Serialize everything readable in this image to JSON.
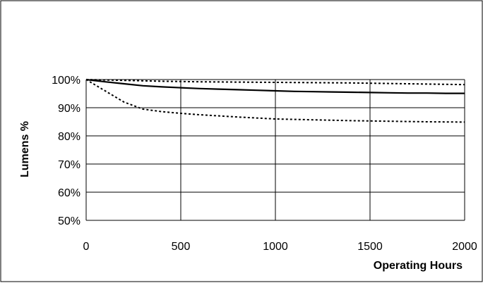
{
  "chart_data": {
    "type": "line",
    "title": "",
    "xlabel": "Operating Hours",
    "ylabel": "Lumens %",
    "xlim": [
      0,
      2000
    ],
    "ylim": [
      50,
      100
    ],
    "x_ticks": [
      "0",
      "500",
      "1000",
      "1500",
      "2000"
    ],
    "y_ticks": [
      "50%",
      "60%",
      "70%",
      "80%",
      "90%",
      "100%"
    ],
    "grid": true,
    "legend": "none",
    "series": [
      {
        "line_style": "solid",
        "color": "#000000",
        "x": [
          0,
          100,
          200,
          300,
          400,
          500,
          600,
          700,
          800,
          900,
          1000,
          1100,
          1200,
          1300,
          1400,
          1500,
          1600,
          1700,
          1800,
          1900,
          2000
        ],
        "y": [
          100,
          99.2,
          98.5,
          97.8,
          97.4,
          97.1,
          96.8,
          96.6,
          96.4,
          96.2,
          96.0,
          95.8,
          95.7,
          95.6,
          95.5,
          95.4,
          95.3,
          95.2,
          95.2,
          95.1,
          95.1
        ]
      },
      {
        "line_style": "dotted",
        "color": "#000000",
        "x": [
          0,
          200,
          400,
          600,
          800,
          1000,
          1200,
          1400,
          1600,
          1800,
          2000
        ],
        "y": [
          100,
          99.7,
          99.4,
          99.2,
          99.1,
          99.0,
          98.9,
          98.8,
          98.6,
          98.4,
          98.2
        ]
      },
      {
        "line_style": "dotted",
        "color": "#000000",
        "x": [
          0,
          100,
          200,
          300,
          400,
          500,
          600,
          800,
          1000,
          1200,
          1400,
          1600,
          1800,
          2000
        ],
        "y": [
          100,
          96,
          92,
          89.5,
          88.6,
          88.0,
          87.5,
          86.7,
          86.0,
          85.7,
          85.4,
          85.2,
          85.0,
          84.9
        ]
      }
    ]
  }
}
